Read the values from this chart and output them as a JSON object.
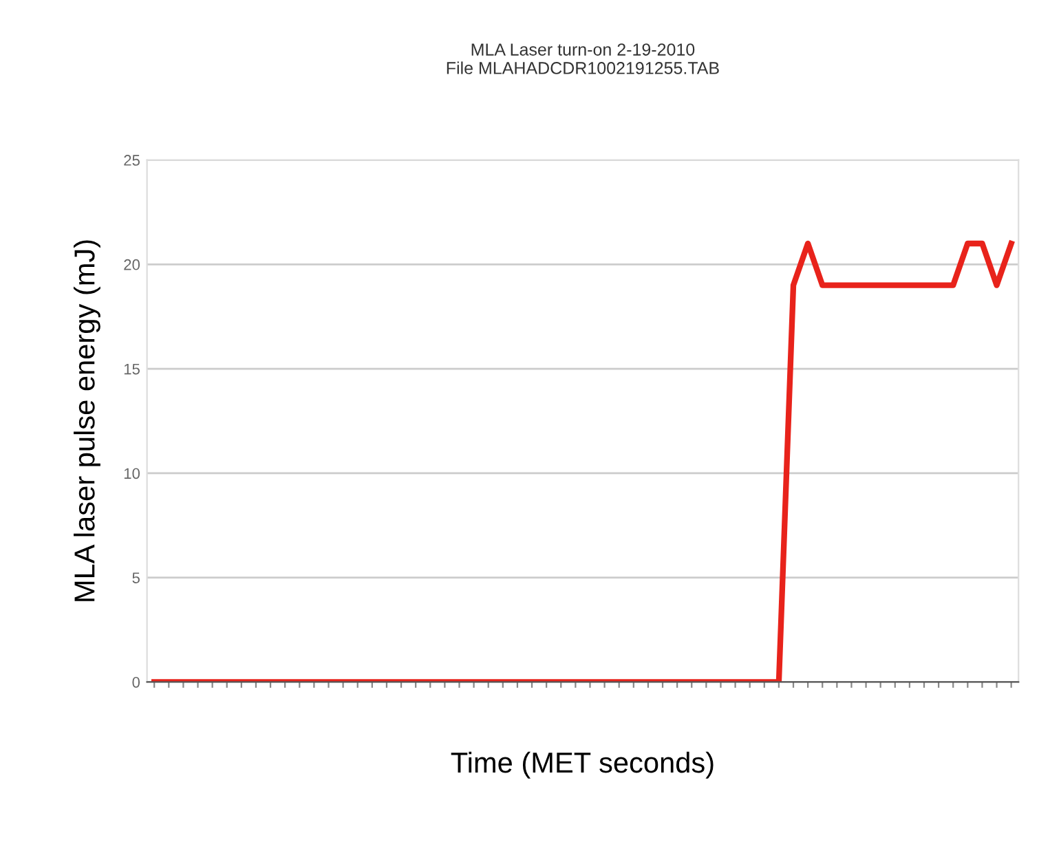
{
  "chart_data": {
    "type": "line",
    "title": "MLA Laser turn-on 2-19-2010\nFile MLAHADCDR1002191255.TAB",
    "xlabel": "Time (MET seconds)",
    "ylabel": "MLA laser pulse energy (mJ)",
    "categories": [
      null,
      null,
      null,
      null,
      null,
      null,
      null,
      null,
      null,
      null,
      null,
      null,
      null,
      null,
      null,
      null,
      null,
      null,
      null,
      null,
      null,
      null,
      null,
      null,
      null,
      null,
      null,
      null,
      null,
      null,
      null,
      null,
      null,
      null,
      null,
      null,
      null,
      null,
      null,
      null,
      null,
      null,
      null,
      null,
      null,
      null,
      null,
      null,
      null,
      null,
      null,
      null,
      null,
      null,
      null,
      null,
      null,
      null,
      null,
      null
    ],
    "series": [
      {
        "color": "#e8231b",
        "values": [
          0,
          0,
          0,
          0,
          0,
          0,
          0,
          0,
          0,
          0,
          0,
          0,
          0,
          0,
          0,
          0,
          0,
          0,
          0,
          0,
          0,
          0,
          0,
          0,
          0,
          0,
          0,
          0,
          0,
          0,
          0,
          0,
          0,
          0,
          0,
          0,
          0,
          0,
          0,
          0,
          0,
          0,
          0,
          0,
          19,
          21,
          19,
          19,
          19,
          19,
          19,
          19,
          19,
          19,
          19,
          19,
          21,
          21,
          19,
          21
        ]
      }
    ],
    "ylim": [
      0,
      25
    ],
    "yticks": [
      0,
      5,
      10,
      15,
      20,
      25
    ],
    "grid": "y",
    "marker": "none",
    "line_style": "solid"
  }
}
